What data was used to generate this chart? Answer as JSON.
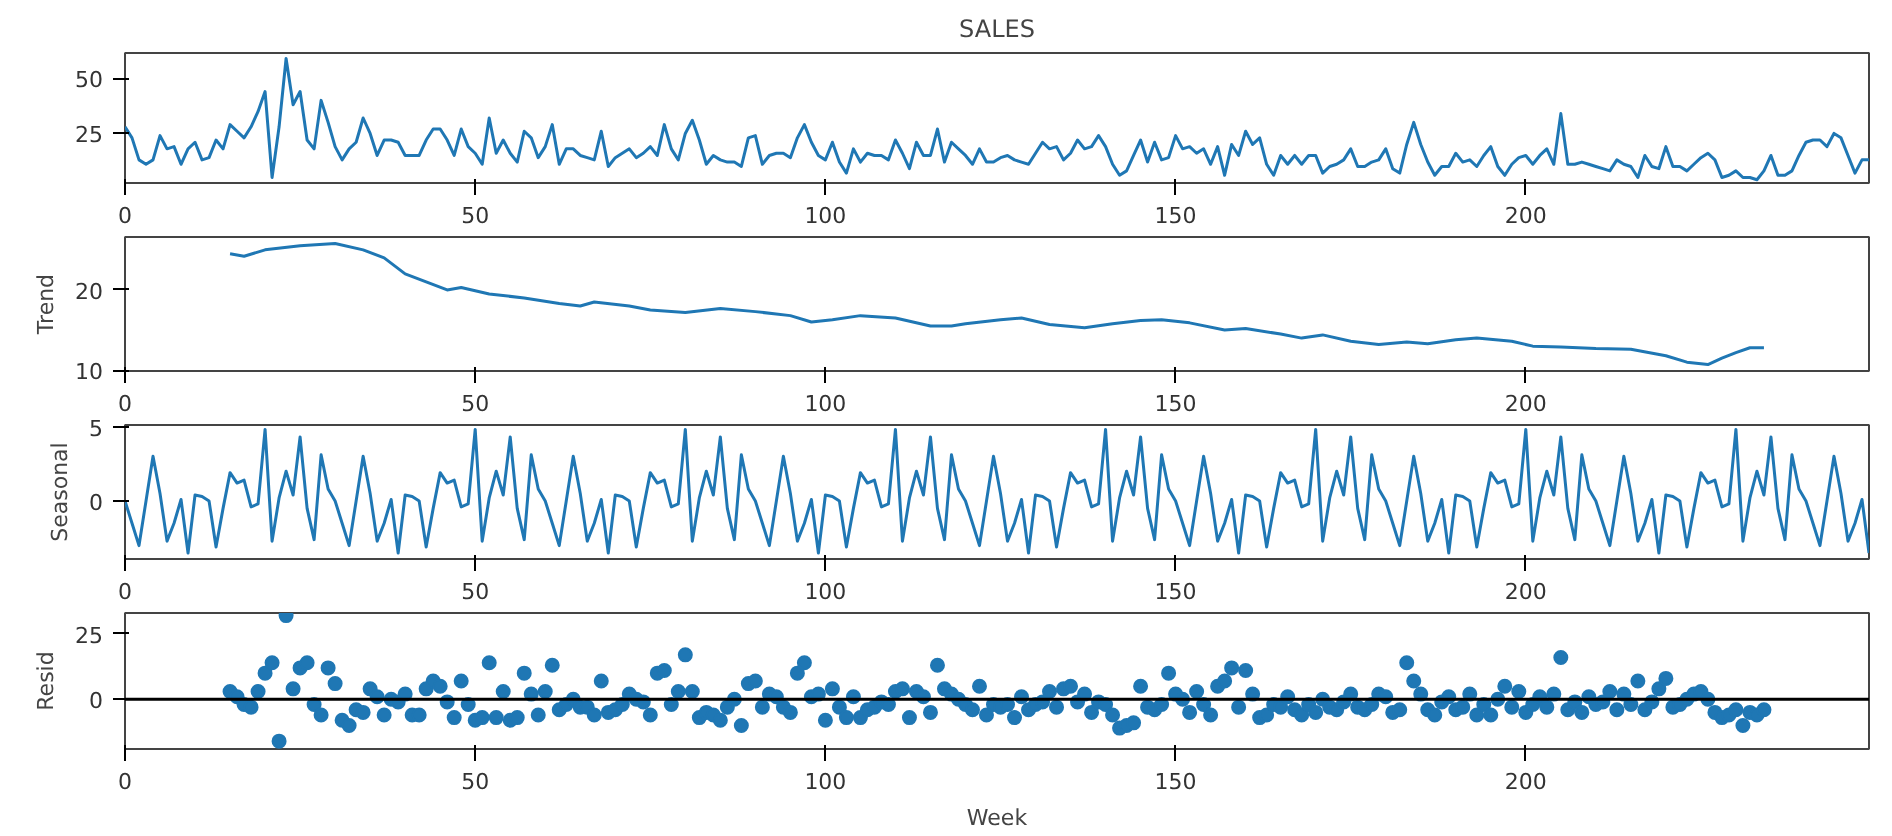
{
  "chart_data": [
    {
      "type": "line",
      "title": "SALES",
      "xlim": [
        0,
        249
      ],
      "xticks": [
        0,
        50,
        100,
        150,
        200
      ],
      "ylim": [
        2.5,
        61.5
      ],
      "yticks": [
        25,
        50
      ],
      "marker": "none",
      "line_style": "solid",
      "x": [
        0,
        1,
        2,
        3,
        4,
        5,
        6,
        7,
        8,
        9,
        10,
        11,
        12,
        13,
        14,
        15,
        16,
        17,
        18,
        19,
        20,
        21,
        22,
        23,
        24,
        25,
        26,
        27,
        28,
        29,
        30,
        31,
        32,
        33,
        34,
        35,
        36,
        37,
        38,
        39,
        40,
        41,
        42,
        43,
        44,
        45,
        46,
        47,
        48,
        49,
        50,
        51,
        52,
        53,
        54,
        55,
        56,
        57,
        58,
        59,
        60,
        61,
        62,
        63,
        64,
        65,
        66,
        67,
        68,
        69,
        70,
        71,
        72,
        73,
        74,
        75,
        76,
        77,
        78,
        79,
        80,
        81,
        82,
        83,
        84,
        85,
        86,
        87,
        88,
        89,
        90,
        91,
        92,
        93,
        94,
        95,
        96,
        97,
        98,
        99,
        100,
        101,
        102,
        103,
        104,
        105,
        106,
        107,
        108,
        109,
        110,
        111,
        112,
        113,
        114,
        115,
        116,
        117,
        118,
        119,
        120,
        121,
        122,
        123,
        124,
        125,
        126,
        127,
        128,
        129,
        130,
        131,
        132,
        133,
        134,
        135,
        136,
        137,
        138,
        139,
        140,
        141,
        142,
        143,
        144,
        145,
        146,
        147,
        148,
        149,
        150,
        151,
        152,
        153,
        154,
        155,
        156,
        157,
        158,
        159,
        160,
        161,
        162,
        163,
        164,
        165,
        166,
        167,
        168,
        169,
        170,
        171,
        172,
        173,
        174,
        175,
        176,
        177,
        178,
        179,
        180,
        181,
        182,
        183,
        184,
        185,
        186,
        187,
        188,
        189,
        190,
        191,
        192,
        193,
        194,
        195,
        196,
        197,
        198,
        199,
        200,
        201,
        202,
        203,
        204,
        205,
        206,
        207,
        208,
        209,
        210,
        211,
        212,
        213,
        214,
        215,
        216,
        217,
        218,
        219,
        220,
        221,
        222,
        223,
        224,
        225,
        226,
        227,
        228,
        229,
        230,
        231,
        232,
        233,
        234,
        235,
        236,
        237,
        238,
        239,
        240,
        241,
        242,
        243,
        244,
        245,
        246,
        247,
        248,
        249
      ],
      "series": [
        {
          "color": "#1f77b4",
          "values": [
            28,
            23,
            13,
            11,
            13,
            24,
            18,
            19,
            11,
            18,
            21,
            13,
            14,
            22,
            18,
            29,
            26,
            23,
            28,
            35,
            44,
            5,
            28,
            59,
            38,
            44,
            22,
            18,
            40,
            30,
            19,
            13,
            18,
            21,
            32,
            25,
            15,
            22,
            22,
            21,
            15,
            15,
            15,
            22,
            27,
            27,
            22,
            15,
            27,
            19,
            16,
            11,
            32,
            16,
            22,
            16,
            12,
            26,
            23,
            14,
            19,
            29,
            11,
            18,
            18,
            15,
            14,
            13,
            26,
            10,
            14,
            16,
            18,
            14,
            16,
            19,
            15,
            29,
            18,
            13,
            25,
            31,
            22,
            11,
            15,
            13,
            12,
            12,
            10,
            23,
            24,
            11,
            15,
            16,
            16,
            14,
            23,
            29,
            21,
            15,
            13,
            21,
            12,
            7,
            18,
            12,
            16,
            15,
            15,
            13,
            22,
            16,
            9,
            21,
            15,
            15,
            27,
            12,
            21,
            18,
            15,
            11,
            18,
            12,
            12,
            14,
            15,
            13,
            12,
            11,
            16,
            21,
            18,
            19,
            13,
            16,
            22,
            18,
            19,
            24,
            19,
            11,
            6,
            8,
            15,
            22,
            12,
            21,
            13,
            14,
            24,
            18,
            19,
            16,
            18,
            11,
            19,
            6,
            20,
            15,
            26,
            20,
            23,
            11,
            6,
            15,
            11,
            15,
            11,
            15,
            15,
            7,
            10,
            11,
            13,
            18,
            10,
            10,
            12,
            13,
            18,
            9,
            7,
            20,
            30,
            20,
            12,
            6,
            10,
            10,
            16,
            12,
            13,
            10,
            15,
            19,
            10,
            6,
            11,
            14,
            15,
            11,
            15,
            18,
            11,
            34,
            11,
            11,
            12,
            11,
            10,
            9,
            8,
            13,
            11,
            10,
            5,
            15,
            10,
            9,
            19,
            10,
            10,
            8,
            11,
            14,
            16,
            13,
            5,
            6,
            8,
            5,
            5,
            4,
            8,
            15,
            6,
            6,
            8,
            15,
            21,
            22,
            22,
            19,
            25,
            23,
            15,
            7,
            13,
            13
          ]
        }
      ]
    },
    {
      "type": "line",
      "ylabel": "Trend",
      "xlim": [
        0,
        249
      ],
      "xticks": [
        0,
        50,
        100,
        150,
        200
      ],
      "ylim": [
        9.9,
        26.6
      ],
      "yticks": [
        10,
        20
      ],
      "marker": "none",
      "line_style": "solid",
      "series": [
        {
          "color": "#1f77b4",
          "x": [
            15,
            17,
            20,
            25,
            30,
            34,
            37,
            40,
            43,
            46,
            48,
            52,
            57,
            62,
            65,
            67,
            72,
            75,
            80,
            85,
            90,
            95,
            98,
            101,
            105,
            110,
            115,
            118,
            120,
            125,
            128,
            132,
            137,
            141,
            145,
            148,
            152,
            157,
            160,
            165,
            168,
            171,
            175,
            179,
            183,
            186,
            190,
            193,
            198,
            201,
            205,
            210,
            215,
            220,
            223,
            226,
            228,
            230,
            232,
            234
          ],
          "values": [
            24.5,
            24.2,
            25,
            25.5,
            25.8,
            25,
            24,
            22,
            21,
            20,
            20.3,
            19.5,
            19,
            18.3,
            18,
            18.5,
            18,
            17.5,
            17.2,
            17.7,
            17.3,
            16.8,
            16,
            16.3,
            16.8,
            16.5,
            15.5,
            15.5,
            15.8,
            16.3,
            16.5,
            15.7,
            15.3,
            15.8,
            16.2,
            16.3,
            15.9,
            15,
            15.2,
            14.5,
            14,
            14.4,
            13.6,
            13.2,
            13.5,
            13.3,
            13.8,
            14,
            13.6,
            13,
            12.9,
            12.7,
            12.6,
            11.8,
            11,
            10.7,
            11.5,
            12.2,
            12.8,
            12.8
          ]
        }
      ]
    },
    {
      "type": "line",
      "ylabel": "Seasonal",
      "xlim": [
        0,
        249
      ],
      "xticks": [
        0,
        50,
        100,
        150,
        200
      ],
      "ylim": [
        -3.9,
        5.1
      ],
      "yticks": [
        0,
        5
      ],
      "marker": "none",
      "line_style": "solid",
      "x": [
        0,
        1,
        2,
        3,
        4,
        5,
        6,
        7,
        8,
        9,
        10,
        11,
        12,
        13,
        14,
        15,
        16,
        17,
        18,
        19,
        20,
        21,
        22,
        23,
        24,
        25,
        26,
        27,
        28,
        29,
        30,
        31,
        32,
        33,
        34,
        35,
        36,
        37,
        38,
        39,
        40,
        41,
        42,
        43,
        44,
        45,
        46,
        47,
        48,
        49,
        50,
        51,
        52,
        53,
        54,
        55,
        56,
        57,
        58,
        59,
        60,
        61,
        62,
        63,
        64,
        65,
        66,
        67,
        68,
        69,
        70,
        71,
        72,
        73,
        74,
        75,
        76,
        77,
        78,
        79,
        80,
        81,
        82,
        83,
        84,
        85,
        86,
        87,
        88,
        89,
        90,
        91,
        92,
        93,
        94,
        95,
        96,
        97,
        98,
        99,
        100,
        101,
        102,
        103,
        104,
        105,
        106,
        107,
        108,
        109,
        110,
        111,
        112,
        113,
        114,
        115,
        116,
        117,
        118,
        119,
        120,
        121,
        122,
        123,
        124,
        125,
        126,
        127,
        128,
        129,
        130,
        131,
        132,
        133,
        134,
        135,
        136,
        137,
        138,
        139,
        140,
        141,
        142,
        143,
        144,
        145,
        146,
        147,
        148,
        149,
        150,
        151,
        152,
        153,
        154,
        155,
        156,
        157,
        158,
        159,
        160,
        161,
        162,
        163,
        164,
        165,
        166,
        167,
        168,
        169,
        170,
        171,
        172,
        173,
        174,
        175,
        176,
        177,
        178,
        179,
        180,
        181,
        182,
        183,
        184,
        185,
        186,
        187,
        188,
        189,
        190,
        191,
        192,
        193,
        194,
        195,
        196,
        197,
        198,
        199,
        200,
        201,
        202,
        203,
        204,
        205,
        206,
        207,
        208,
        209,
        210,
        211,
        212,
        213,
        214,
        215,
        216,
        217,
        218,
        219,
        220,
        221,
        222,
        223,
        224,
        225,
        226,
        227,
        228,
        229,
        230,
        231,
        232,
        233,
        234,
        235,
        236,
        237,
        238,
        239,
        240,
        241,
        242,
        243,
        244,
        245,
        246,
        247,
        248,
        249
      ],
      "series": [
        {
          "color": "#1f77b4",
          "values": [
            0,
            -1.5,
            -3,
            0,
            3,
            0.5,
            -2.7,
            -1.5,
            0.1,
            -3.5,
            0.4,
            0.3,
            0,
            -3.1,
            -0.5,
            1.9,
            1.2,
            1.4,
            -0.4,
            -0.2,
            4.8,
            -2.7,
            0.2,
            2,
            0.4,
            4.3,
            -0.5,
            -2.6,
            3.1,
            0.8,
            0,
            -1.5,
            -3,
            0,
            3,
            0.5,
            -2.7,
            -1.5,
            0.1,
            -3.5,
            0.4,
            0.3,
            0,
            -3.1,
            -0.5,
            1.9,
            1.2,
            1.4,
            -0.4,
            -0.2,
            4.8,
            -2.7,
            0.2,
            2,
            0.4,
            4.3,
            -0.5,
            -2.6,
            3.1,
            0.8,
            0,
            -1.5,
            -3,
            0,
            3,
            0.5,
            -2.7,
            -1.5,
            0.1,
            -3.5,
            0.4,
            0.3,
            0,
            -3.1,
            -0.5,
            1.9,
            1.2,
            1.4,
            -0.4,
            -0.2,
            4.8,
            -2.7,
            0.2,
            2,
            0.4,
            4.3,
            -0.5,
            -2.6,
            3.1,
            0.8,
            0,
            -1.5,
            -3,
            0,
            3,
            0.5,
            -2.7,
            -1.5,
            0.1,
            -3.5,
            0.4,
            0.3,
            0,
            -3.1,
            -0.5,
            1.9,
            1.2,
            1.4,
            -0.4,
            -0.2,
            4.8,
            -2.7,
            0.2,
            2,
            0.4,
            4.3,
            -0.5,
            -2.6,
            3.1,
            0.8,
            0,
            -1.5,
            -3,
            0,
            3,
            0.5,
            -2.7,
            -1.5,
            0.1,
            -3.5,
            0.4,
            0.3,
            0,
            -3.1,
            -0.5,
            1.9,
            1.2,
            1.4,
            -0.4,
            -0.2,
            4.8,
            -2.7,
            0.2,
            2,
            0.4,
            4.3,
            -0.5,
            -2.6,
            3.1,
            0.8,
            0,
            -1.5,
            -3,
            0,
            3,
            0.5,
            -2.7,
            -1.5,
            0.1,
            -3.5,
            0.4,
            0.3,
            0,
            -3.1,
            -0.5,
            1.9,
            1.2,
            1.4,
            -0.4,
            -0.2,
            4.8,
            -2.7,
            0.2,
            2,
            0.4,
            4.3,
            -0.5,
            -2.6,
            3.1,
            0.8,
            0,
            -1.5,
            -3,
            0,
            3,
            0.5,
            -2.7,
            -1.5,
            0.1,
            -3.5,
            0.4,
            0.3,
            0,
            -3.1,
            -0.5,
            1.9,
            1.2,
            1.4,
            -0.4,
            -0.2,
            4.8,
            -2.7,
            0.2,
            2,
            0.4,
            4.3,
            -0.5,
            -2.6,
            3.1,
            0.8,
            0,
            -1.5,
            -3,
            0,
            3,
            0.5,
            -2.7,
            -1.5,
            0.1,
            -3.5,
            0.4,
            0.3,
            0,
            -3.1,
            -0.5,
            1.9,
            1.2,
            1.4,
            -0.4,
            -0.2,
            4.8,
            -2.7,
            0.2,
            2,
            0.4,
            4.3,
            -0.5,
            -2.6,
            3.1,
            0.8,
            0,
            -1.5,
            -3,
            0,
            3,
            0.5,
            -2.7,
            -1.5,
            0.1,
            -3.5
          ]
        }
      ]
    },
    {
      "type": "scatter",
      "ylabel": "Resid",
      "xlabel": "Week",
      "xlim": [
        0,
        249
      ],
      "xticks": [
        0,
        50,
        100,
        150,
        200
      ],
      "ylim": [
        -19,
        33
      ],
      "yticks": [
        0,
        25
      ],
      "marker": "circle",
      "ref_lines": [
        {
          "axis": "y",
          "value": 0,
          "color": "#000000"
        }
      ],
      "series": [
        {
          "color": "#1f77b4",
          "x": [
            15,
            16,
            17,
            18,
            19,
            20,
            21,
            22,
            23,
            24,
            25,
            26,
            27,
            28,
            29,
            30,
            31,
            32,
            33,
            34,
            35,
            36,
            37,
            38,
            39,
            40,
            41,
            42,
            43,
            44,
            45,
            46,
            47,
            48,
            49,
            50,
            51,
            52,
            53,
            54,
            55,
            56,
            57,
            58,
            59,
            60,
            61,
            62,
            63,
            64,
            65,
            66,
            67,
            68,
            69,
            70,
            71,
            72,
            73,
            74,
            75,
            76,
            77,
            78,
            79,
            80,
            81,
            82,
            83,
            84,
            85,
            86,
            87,
            88,
            89,
            90,
            91,
            92,
            93,
            94,
            95,
            96,
            97,
            98,
            99,
            100,
            101,
            102,
            103,
            104,
            105,
            106,
            107,
            108,
            109,
            110,
            111,
            112,
            113,
            114,
            115,
            116,
            117,
            118,
            119,
            120,
            121,
            122,
            123,
            124,
            125,
            126,
            127,
            128,
            129,
            130,
            131,
            132,
            133,
            134,
            135,
            136,
            137,
            138,
            139,
            140,
            141,
            142,
            143,
            144,
            145,
            146,
            147,
            148,
            149,
            150,
            151,
            152,
            153,
            154,
            155,
            156,
            157,
            158,
            159,
            160,
            161,
            162,
            163,
            164,
            165,
            166,
            167,
            168,
            169,
            170,
            171,
            172,
            173,
            174,
            175,
            176,
            177,
            178,
            179,
            180,
            181,
            182,
            183,
            184,
            185,
            186,
            187,
            188,
            189,
            190,
            191,
            192,
            193,
            194,
            195,
            196,
            197,
            198,
            199,
            200,
            201,
            202,
            203,
            204,
            205,
            206,
            207,
            208,
            209,
            210,
            211,
            212,
            213,
            214,
            215,
            216,
            217,
            218,
            219,
            220,
            221,
            222,
            223,
            224,
            225,
            226,
            227,
            228,
            229,
            230,
            231,
            232,
            233,
            234
          ],
          "values": [
            3,
            1,
            -2,
            -3,
            3,
            10,
            14,
            -16,
            32,
            4,
            12,
            14,
            -2,
            -6,
            12,
            6,
            -8,
            -10,
            -4,
            -5,
            4,
            1,
            -6,
            0,
            -1,
            2,
            -6,
            -6,
            4,
            7,
            5,
            -1,
            -7,
            7,
            -2,
            -8,
            -7,
            14,
            -7,
            3,
            -8,
            -7,
            10,
            2,
            -6,
            3,
            13,
            -4,
            -2,
            0,
            -3,
            -3,
            -6,
            7,
            -5,
            -4,
            -2,
            2,
            0,
            -1,
            -6,
            10,
            11,
            -2,
            3,
            17,
            3,
            -7,
            -5,
            -6,
            -8,
            -3,
            0,
            -10,
            6,
            7,
            -3,
            2,
            1,
            -3,
            -5,
            10,
            14,
            1,
            2,
            -8,
            4,
            -3,
            -7,
            1,
            -7,
            -4,
            -3,
            -1,
            -2,
            3,
            4,
            -7,
            3,
            1,
            -5,
            13,
            4,
            2,
            0,
            -2,
            -4,
            5,
            -6,
            -2,
            -3,
            -2,
            -7,
            1,
            -4,
            -2,
            -1,
            3,
            -3,
            4,
            5,
            -1,
            2,
            -5,
            -1,
            -2,
            -6,
            -11,
            -10,
            -9,
            5,
            -3,
            -4,
            -2,
            10,
            2,
            0,
            -5,
            3,
            -2,
            -6,
            5,
            7,
            12,
            -3,
            11,
            2,
            -7,
            -6,
            -2,
            -3,
            1,
            -4,
            -6,
            -2,
            -5,
            0,
            -3,
            -4,
            -1,
            2,
            -3,
            -4,
            -2,
            2,
            1,
            -5,
            -4,
            14,
            7,
            2,
            -4,
            -6,
            -1,
            1,
            -4,
            -3,
            2,
            -6,
            -2,
            -6,
            0,
            5,
            -3,
            3,
            -5,
            -2,
            1,
            -3,
            2,
            16,
            -4,
            -1,
            -5,
            1,
            -2,
            -1,
            3,
            -4,
            2,
            -2,
            7,
            -4,
            -1,
            4,
            8,
            -3,
            -2,
            0,
            2,
            3,
            0,
            -5,
            -7,
            -6,
            -4,
            -10,
            -5,
            -6,
            -4
          ]
        }
      ]
    }
  ]
}
